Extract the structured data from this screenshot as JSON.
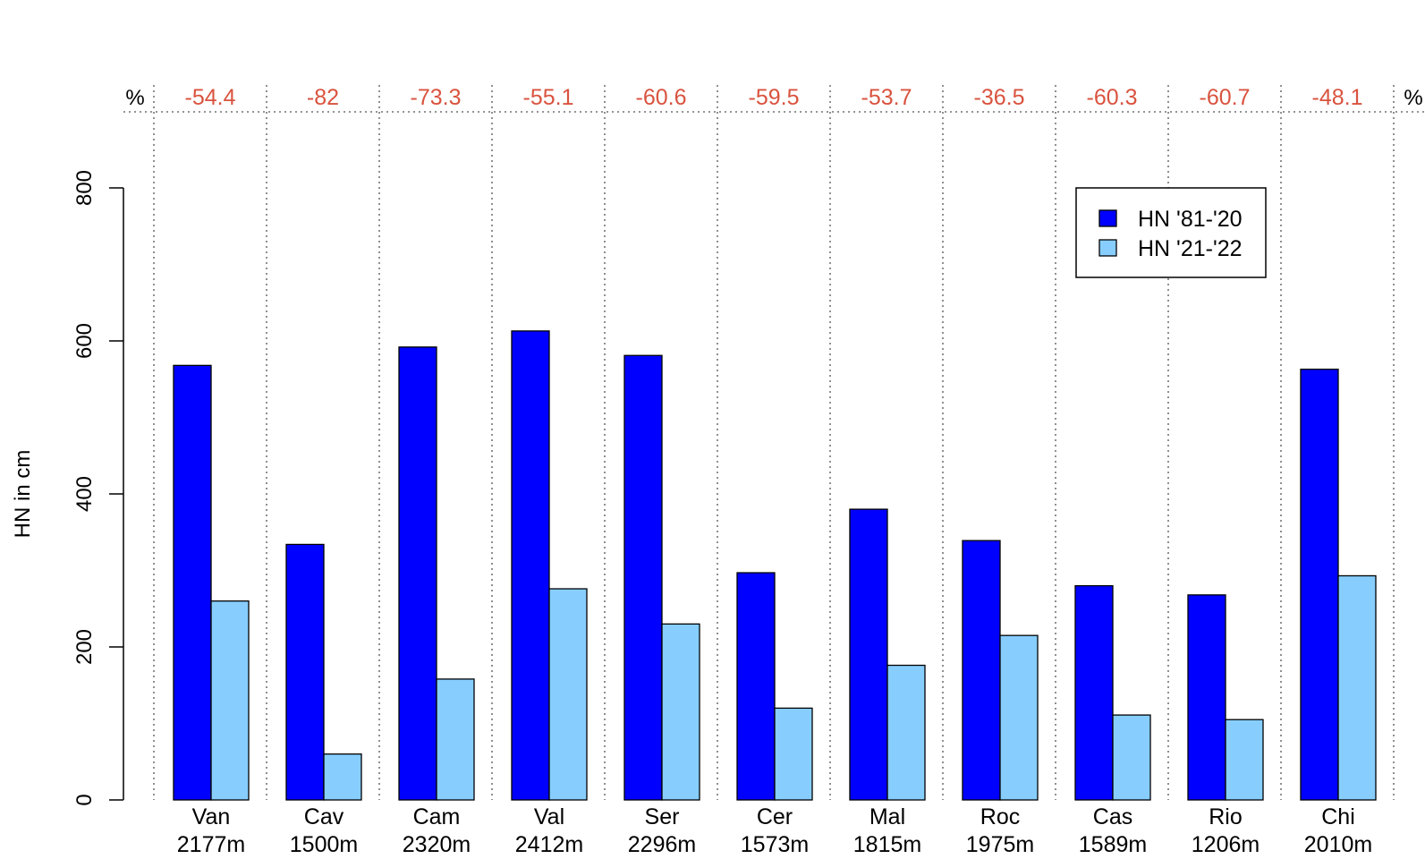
{
  "chart_data": {
    "type": "bar",
    "title": "",
    "xlabel": "",
    "ylabel": "HN in cm",
    "ylim": [
      0,
      800
    ],
    "yticks": [
      0,
      200,
      400,
      600,
      800
    ],
    "categories": [
      "Van",
      "Cav",
      "Cam",
      "Val",
      "Ser",
      "Cer",
      "Mal",
      "Roc",
      "Cas",
      "Rio",
      "Chi"
    ],
    "category_elevations": [
      "2177m",
      "1500m",
      "2320m",
      "2412m",
      "2296m",
      "1573m",
      "1815m",
      "1975m",
      "1589m",
      "1206m",
      "2010m"
    ],
    "series": [
      {
        "name": "HN '81-'20",
        "color": "#0000ff",
        "values": [
          568,
          334,
          592,
          613,
          581,
          297,
          380,
          339,
          280,
          268,
          563
        ]
      },
      {
        "name": "HN '21-'22",
        "color": "#87ceff",
        "values": [
          260,
          60,
          158,
          276,
          230,
          120,
          176,
          215,
          111,
          105,
          293
        ]
      }
    ],
    "percent_change": [
      "-54.4",
      "-82",
      "-73.3",
      "-55.1",
      "-60.6",
      "-59.5",
      "-53.7",
      "-36.5",
      "-60.3",
      "-60.7",
      "-48.1"
    ],
    "percent_color": "#d9533f",
    "percent_label": "%",
    "grid": "vertical dotted separators",
    "legend_position": "top-right"
  }
}
